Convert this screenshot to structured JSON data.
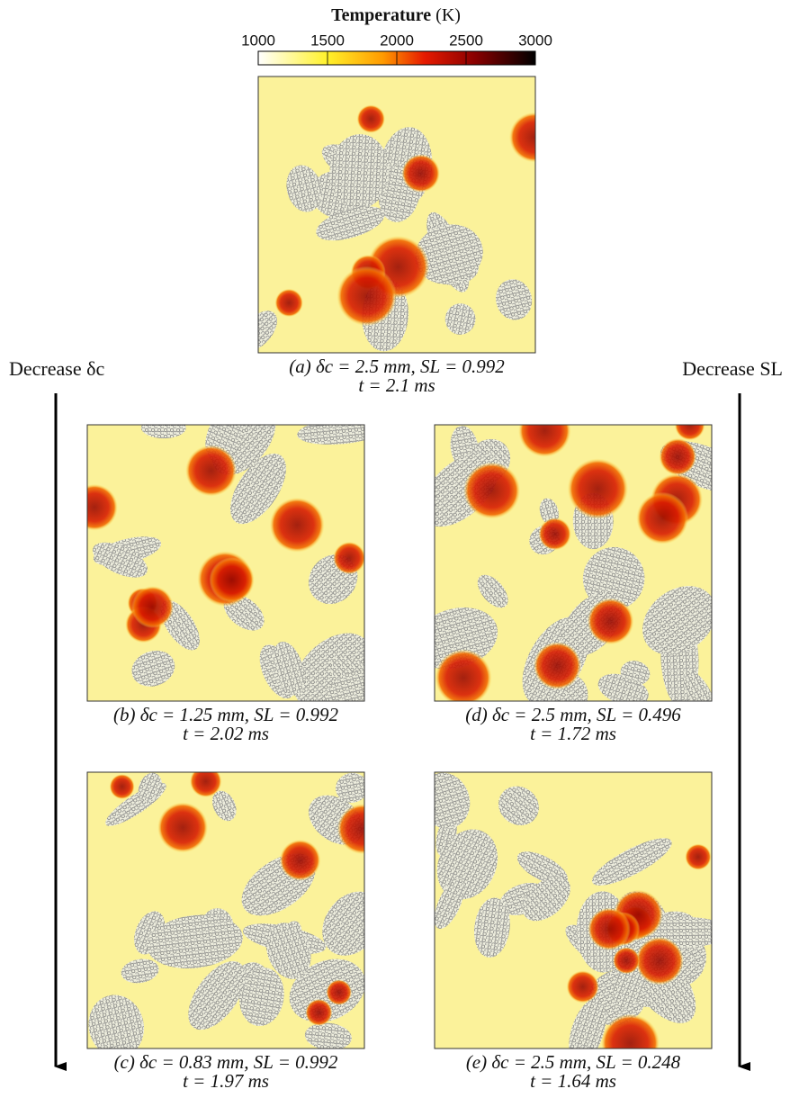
{
  "colorbar": {
    "title": "Temperature",
    "unit": "(K)",
    "lim": [
      1000,
      3000
    ],
    "ticks": [
      1000,
      1500,
      2000,
      2500,
      3000
    ]
  },
  "arrows": {
    "left": "Decrease δc",
    "right": "Decrease SL"
  },
  "panels": [
    {
      "caption": "(a) δc = 2.5 mm, SL = 0.992",
      "time": "t = 2.1 ms"
    },
    {
      "caption": "(b) δc = 1.25 mm, SL = 0.992",
      "time": "t = 2.02 ms"
    },
    {
      "caption": "(d) δc = 2.5 mm, SL = 0.496",
      "time": "t = 1.72 ms"
    },
    {
      "caption": "(c) δc = 0.83 mm, SL = 0.992",
      "time": "t = 1.97 ms"
    },
    {
      "caption": "(e) δc = 2.5 mm, SL = 0.248",
      "time": "t = 1.64 ms"
    }
  ]
}
